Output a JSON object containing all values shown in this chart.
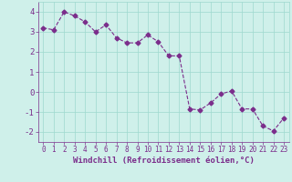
{
  "x": [
    0,
    1,
    2,
    3,
    4,
    5,
    6,
    7,
    8,
    9,
    10,
    11,
    12,
    13,
    14,
    15,
    16,
    17,
    18,
    19,
    20,
    21,
    22,
    23
  ],
  "y": [
    3.2,
    3.1,
    4.0,
    3.8,
    3.5,
    3.0,
    3.35,
    2.7,
    2.45,
    2.45,
    2.85,
    2.5,
    1.8,
    1.8,
    -0.85,
    -0.9,
    -0.55,
    -0.1,
    0.05,
    -0.85,
    -0.85,
    -1.7,
    -1.95,
    -1.3
  ],
  "line_color": "#7b2d8b",
  "marker": "D",
  "markersize": 2.5,
  "linewidth": 0.8,
  "xlabel": "Windchill (Refroidissement éolien,°C)",
  "xlim": [
    -0.5,
    23.5
  ],
  "ylim": [
    -2.5,
    4.5
  ],
  "yticks": [
    -2,
    -1,
    0,
    1,
    2,
    3,
    4
  ],
  "xticks": [
    0,
    1,
    2,
    3,
    4,
    5,
    6,
    7,
    8,
    9,
    10,
    11,
    12,
    13,
    14,
    15,
    16,
    17,
    18,
    19,
    20,
    21,
    22,
    23
  ],
  "bg_color": "#cff0ea",
  "grid_color": "#9ed8ce",
  "line_purple": "#7b2d8b",
  "spine_color": "#9ed8ce",
  "xlabel_fontsize": 6.5,
  "tick_fontsize": 5.5,
  "ytick_fontsize": 6.5
}
